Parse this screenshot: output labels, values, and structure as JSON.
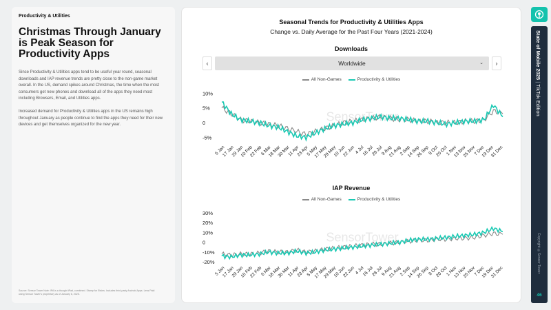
{
  "left": {
    "tag": "Productivity & Utilities",
    "headline": "Christmas Through January is Peak Season for Productivity Apps",
    "paragraphs": [
      "Since Productivity & Utilities apps tend to be useful year round, seasonal downloads and IAP revenue trends are pretty close to the non-game market overall. In the US, demand spikes around Christmas, the time when the most consumers get new phones and download all of the apps they need most including Browsers, Email, and Utilities apps.",
      "Increased demand for Productivity & Utilities apps in the US remains high throughout January as people continue to find the apps they need for their new devices and get themselves organized for the new year."
    ],
    "source": "Source: Sensor Tower\nNote: IPA is a thought iPad, combined. Stamp for Etsies. Includes third-party Android Apps. Less Paid using Sensor Tower's proprietary as of January 6, 2025."
  },
  "card": {
    "title": "Seasonal Trends for Productivity & Utilities Apps",
    "subtitle": "Change vs. Daily Average for the Past Four Years (2021-2024)",
    "downloads_title": "Downloads",
    "iap_title": "IAP Revenue",
    "dropdown": {
      "value": "Worldwide",
      "prev": "‹",
      "next": "›",
      "chevron": "⌄"
    },
    "watermark": "SensorTower"
  },
  "colors": {
    "all_non_games": "#8a8a8a",
    "productivity": "#19c9b3",
    "accent": "#14c2ad",
    "rail": "#1f2d3d"
  },
  "chart_data": [
    {
      "type": "line",
      "title": "Downloads",
      "x_tick_labels": [
        "5 Jan",
        "17 Jan",
        "29 Jan",
        "10 Feb",
        "22 Feb",
        "6 Mar",
        "18 Mar",
        "30 Mar",
        "11 Apr",
        "23 Apr",
        "5 May",
        "17 May",
        "29 May",
        "10 Jun",
        "22 Jun",
        "4 Jul",
        "16 Jul",
        "28 Jul",
        "9 Aug",
        "21 Aug",
        "2 Sep",
        "14 Sep",
        "26 Sep",
        "8 Oct",
        "20 Oct",
        "1 Nov",
        "13 Nov",
        "25 Nov",
        "7 Dec",
        "19 Dec",
        "31 Dec"
      ],
      "y_tick_labels": [
        "10%",
        "5%",
        "0",
        "-5%"
      ],
      "ylim": [
        -7,
        11
      ],
      "series": [
        {
          "name": "All Non-Games",
          "values": [
            5,
            3,
            1,
            0.5,
            0,
            -0.5,
            -1,
            -2,
            -3,
            -4,
            -3,
            -2,
            -1,
            0,
            0.5,
            1,
            1.5,
            2,
            1.5,
            1,
            1,
            0.5,
            0.5,
            0,
            0,
            0,
            0.5,
            0.5,
            1,
            4,
            3
          ]
        },
        {
          "name": "Productivity & Utilities",
          "values": [
            7,
            3,
            1,
            0.5,
            0,
            -1,
            -1.5,
            -3,
            -4.5,
            -5,
            -3.5,
            -2,
            -1,
            -0.5,
            0,
            1,
            1.5,
            2,
            1.5,
            1.5,
            1,
            0.5,
            0.5,
            0,
            -0.5,
            0,
            0.5,
            0.5,
            1,
            6,
            2
          ]
        }
      ]
    },
    {
      "type": "line",
      "title": "IAP Revenue",
      "x_tick_labels": [
        "5 Jan",
        "17 Jan",
        "29 Jan",
        "10 Feb",
        "22 Feb",
        "6 Mar",
        "18 Mar",
        "30 Mar",
        "11 Apr",
        "23 Apr",
        "5 May",
        "17 May",
        "29 May",
        "10 Jun",
        "22 Jun",
        "4 Jul",
        "16 Jul",
        "28 Jul",
        "9 Aug",
        "21 Aug",
        "2 Sep",
        "14 Sep",
        "26 Sep",
        "8 Oct",
        "20 Oct",
        "1 Nov",
        "13 Nov",
        "25 Nov",
        "7 Dec",
        "19 Dec",
        "31 Dec"
      ],
      "y_tick_labels": [
        "30%",
        "20%",
        "10%",
        "0",
        "-10%",
        "-20%"
      ],
      "ylim": [
        -22,
        32
      ],
      "series": [
        {
          "name": "All Non-Games",
          "values": [
            -12,
            -13,
            -12,
            -12,
            -11,
            -9,
            -10,
            -10,
            -8,
            -10,
            -9,
            -7,
            -6,
            -5,
            -4,
            -3,
            -2,
            -2,
            -1,
            0,
            1,
            2,
            2,
            3,
            3,
            4,
            4,
            5,
            7,
            9,
            8
          ]
        },
        {
          "name": "Productivity & Utilities",
          "values": [
            -14,
            -15,
            -13,
            -13,
            -12,
            -10,
            -11,
            -11,
            -9,
            -11,
            -10,
            -8,
            -7,
            -6,
            -5,
            -4,
            -3,
            -2,
            -1,
            0,
            2,
            3,
            3,
            4,
            5,
            6,
            7,
            8,
            10,
            14,
            11
          ]
        }
      ]
    }
  ],
  "legend": {
    "all_non_games": "All Non-Games",
    "productivity": "Productivity & Utilities"
  },
  "rail": {
    "logo_icon": "sensor-tower-logo",
    "vertical_title": "State of Mobile 2025",
    "edition": "TikTok Edition",
    "copyright": "Copyright ©Sensor Tower",
    "page": "46"
  }
}
